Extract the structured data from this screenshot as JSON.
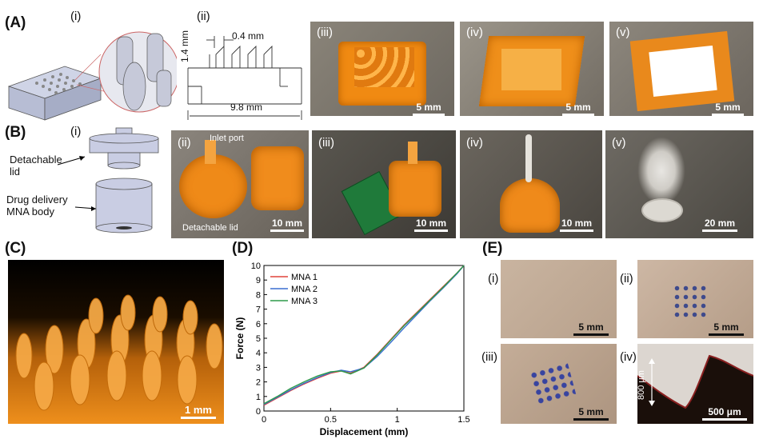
{
  "panels": {
    "A": {
      "label": "(A)",
      "sub": [
        "(i)",
        "(ii)",
        "(iii)",
        "(iv)",
        "(v)"
      ],
      "dims": {
        "top": "0.4 mm",
        "left": "1.4 mm",
        "bottom": "9.8 mm"
      },
      "scales": [
        "5 mm",
        "5 mm",
        "5 mm"
      ]
    },
    "B": {
      "label": "(B)",
      "sub": [
        "(i)",
        "(ii)",
        "(iii)",
        "(iv)",
        "(v)"
      ],
      "lid_label": "Detachable\nlid",
      "body_label": "Drug delivery\nMNA body",
      "inlet_label": "Inlet port",
      "detach_label": "Detachable lid",
      "scales": [
        "10 mm",
        "10 mm",
        "10 mm",
        "20 mm"
      ]
    },
    "C": {
      "label": "(C)",
      "scale": "1 mm"
    },
    "D": {
      "label": "(D)"
    },
    "E": {
      "label": "(E)",
      "sub": [
        "(i)",
        "(ii)",
        "(iii)",
        "(iv)"
      ],
      "scales": [
        "5 mm",
        "5 mm",
        "5 mm",
        "500 μm"
      ],
      "depth_label": "800 μm"
    }
  },
  "chart_data": {
    "type": "line",
    "xlabel": "Displacement (mm)",
    "ylabel": "Force (N)",
    "xlim": [
      0,
      1.5
    ],
    "ylim": [
      0,
      10
    ],
    "xticks": [
      "0",
      "0.5",
      "1",
      "1.5"
    ],
    "yticks": [
      "0",
      "1",
      "2",
      "3",
      "4",
      "5",
      "6",
      "7",
      "8",
      "9",
      "10"
    ],
    "legend_position": "top-left",
    "series": [
      {
        "name": "MNA 1",
        "color": "#e0443a",
        "x": [
          0,
          0.1,
          0.2,
          0.3,
          0.4,
          0.5,
          0.58,
          0.65,
          0.75,
          0.85,
          0.95,
          1.05,
          1.15,
          1.25,
          1.35,
          1.45,
          1.5
        ],
        "y": [
          0.4,
          0.9,
          1.4,
          1.85,
          2.25,
          2.6,
          2.75,
          2.6,
          3.0,
          3.9,
          4.9,
          5.9,
          6.8,
          7.7,
          8.6,
          9.5,
          10
        ]
      },
      {
        "name": "MNA 2",
        "color": "#3a6fd0",
        "x": [
          0,
          0.1,
          0.2,
          0.3,
          0.4,
          0.5,
          0.58,
          0.65,
          0.75,
          0.85,
          0.95,
          1.05,
          1.15,
          1.25,
          1.35,
          1.45,
          1.5
        ],
        "y": [
          0.45,
          0.95,
          1.45,
          1.9,
          2.3,
          2.65,
          2.8,
          2.7,
          2.95,
          3.75,
          4.7,
          5.7,
          6.65,
          7.6,
          8.5,
          9.45,
          10
        ]
      },
      {
        "name": "MNA 3",
        "color": "#2f9a4a",
        "x": [
          0,
          0.1,
          0.2,
          0.3,
          0.4,
          0.5,
          0.58,
          0.65,
          0.75,
          0.85,
          0.95,
          1.05,
          1.15,
          1.25,
          1.35,
          1.45,
          1.5
        ],
        "y": [
          0.5,
          1.0,
          1.55,
          2.0,
          2.4,
          2.7,
          2.75,
          2.55,
          2.95,
          3.85,
          4.85,
          5.85,
          6.75,
          7.65,
          8.55,
          9.5,
          10
        ]
      }
    ]
  }
}
